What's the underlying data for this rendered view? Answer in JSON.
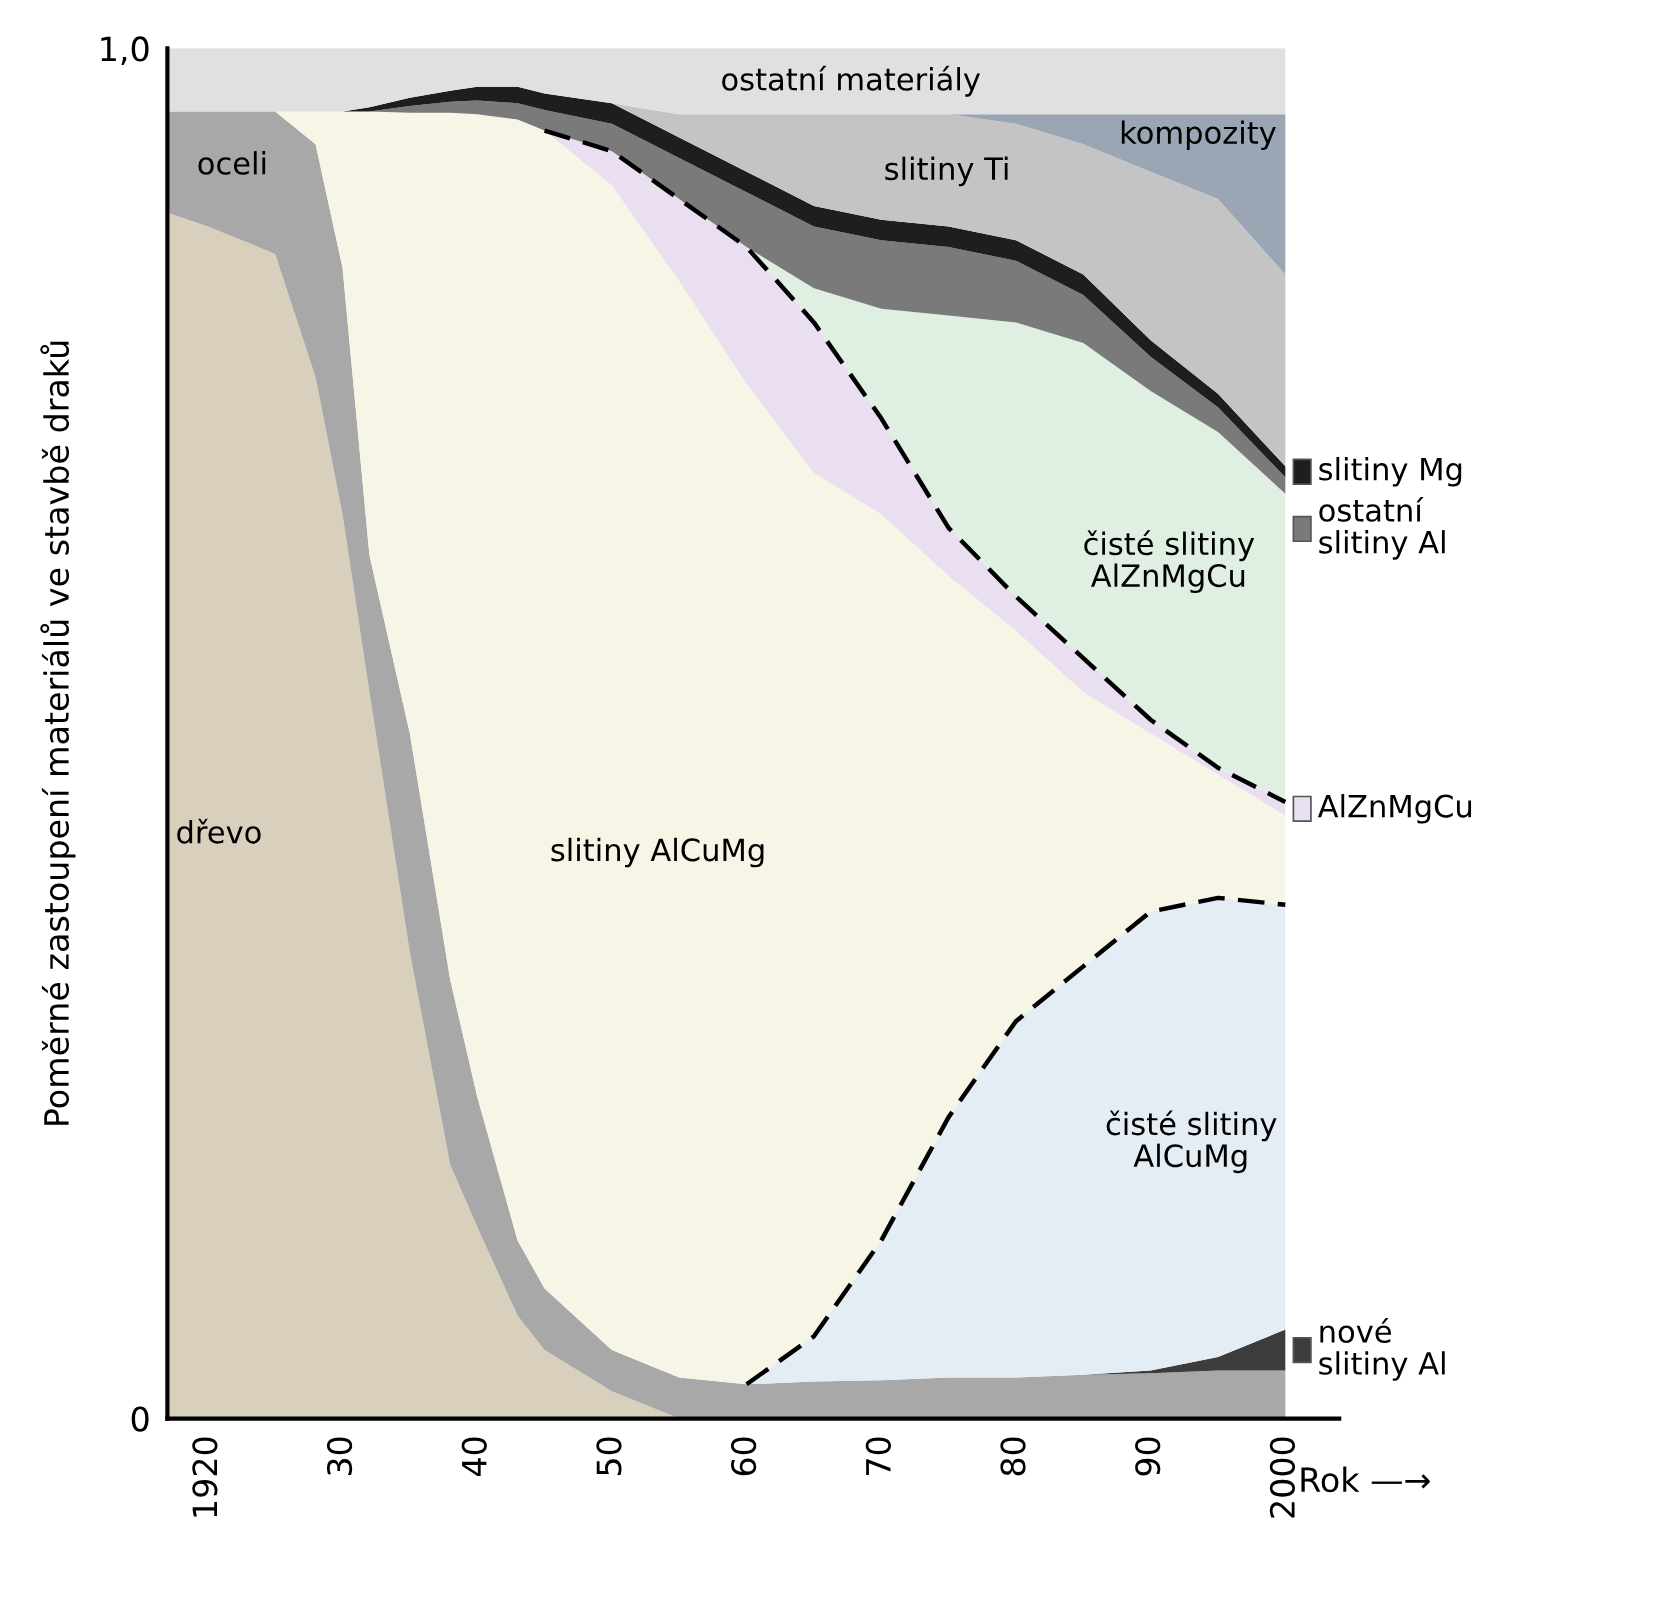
{
  "chart_data": {
    "type": "area",
    "stacked": true,
    "ylabel": "Poměrné zastoupení materiálů ve stavbě draků",
    "xlabel": "Rok —→",
    "x": [
      1917,
      1920,
      1925,
      1928,
      1930,
      1932,
      1935,
      1938,
      1940,
      1943,
      1945,
      1950,
      1955,
      1960,
      1965,
      1970,
      1975,
      1980,
      1985,
      1990,
      1995,
      2000
    ],
    "xlim": [
      1917,
      2004
    ],
    "xticks": [
      {
        "value": 1920,
        "label": "1920"
      },
      {
        "value": 1930,
        "label": "30"
      },
      {
        "value": 1940,
        "label": "40"
      },
      {
        "value": 1950,
        "label": "50"
      },
      {
        "value": 1960,
        "label": "60"
      },
      {
        "value": 1970,
        "label": "70"
      },
      {
        "value": 1980,
        "label": "80"
      },
      {
        "value": 1990,
        "label": "90"
      },
      {
        "value": 2000,
        "label": "2000"
      }
    ],
    "ylim": [
      0,
      1
    ],
    "yticks": [
      0,
      {
        "value": 1,
        "label": "1,0"
      }
    ],
    "series": [
      {
        "name": "dřevo",
        "color": "#d9cfbd",
        "values": [
          0.88,
          0.87,
          0.85,
          0.76,
          0.66,
          0.53,
          0.34,
          0.185,
          0.14,
          0.075,
          0.05,
          0.02,
          0,
          null,
          null,
          null,
          null,
          null,
          null,
          null,
          null,
          null
        ]
      },
      {
        "name": "oceli",
        "color": "#a8a8a8",
        "values": [
          0.074,
          0.084,
          0.104,
          0.17,
          0.18,
          0.1,
          0.16,
          0.135,
          0.095,
          0.055,
          0.045,
          0.03,
          0.03,
          0.025,
          0.027,
          0.028,
          0.03,
          0.03,
          0.032,
          0.033,
          0.035,
          0.035
        ]
      },
      {
        "name": "nové\nslitiny Al",
        "color": "#3c3c3c",
        "values": [
          null,
          null,
          null,
          null,
          null,
          null,
          null,
          null,
          null,
          null,
          null,
          null,
          null,
          null,
          null,
          null,
          null,
          null,
          0,
          0.002,
          0.01,
          0.03
        ]
      },
      {
        "name": "čisté slitiny\nAlCuMg",
        "color": "#e4ecf4",
        "line_style": "dashed",
        "values": [
          null,
          null,
          null,
          null,
          null,
          null,
          null,
          null,
          null,
          null,
          null,
          null,
          null,
          0,
          0.033,
          0.102,
          0.19,
          0.26,
          0.298,
          0.335,
          0.335,
          0.31
        ]
      },
      {
        "name": "slitiny AlCuMg",
        "color": "#f7f5e6",
        "values": [
          null,
          null,
          0,
          0.024,
          0.114,
          0.324,
          0.453,
          0.633,
          0.717,
          0.818,
          0.845,
          0.85,
          0.8,
          0.73,
          0.63,
          0.53,
          0.395,
          0.285,
          0.2,
          0.13,
          0.09,
          0.065
        ]
      },
      {
        "name": "AlZnMgCu",
        "color": "#e9dff0",
        "line_style": "dashed",
        "values": [
          null,
          null,
          null,
          null,
          null,
          null,
          null,
          null,
          null,
          null,
          0,
          0.025,
          0.06,
          0.1,
          0.11,
          0.07,
          0.035,
          0.025,
          0.025,
          0.01,
          0.005,
          0.01
        ]
      },
      {
        "name": "čisté slitiny\nAlZnMgCu",
        "color": "#dff0e2",
        "values": [
          null,
          null,
          null,
          null,
          null,
          null,
          null,
          null,
          null,
          null,
          null,
          null,
          null,
          0,
          0.025,
          0.08,
          0.155,
          0.2,
          0.23,
          0.24,
          0.245,
          0.225
        ]
      },
      {
        "name": "ostatní\nslitiny Al",
        "color": "#7a7a7a",
        "values": [
          null,
          null,
          null,
          null,
          null,
          0,
          0.005,
          0.008,
          0.01,
          0.012,
          0.015,
          0.02,
          0.03,
          0.04,
          0.045,
          0.05,
          0.05,
          0.045,
          0.035,
          0.025,
          0.018,
          0.012
        ]
      },
      {
        "name": "slitiny Mg",
        "color": "#1e1e1e",
        "values": [
          null,
          null,
          null,
          null,
          0,
          0.003,
          0.006,
          0.008,
          0.01,
          0.012,
          0.012,
          0.015,
          0.015,
          0.015,
          0.015,
          0.015,
          0.015,
          0.015,
          0.015,
          0.012,
          0.01,
          0.008
        ]
      },
      {
        "name": "slitiny Ti",
        "color": "#c4c4c4",
        "values": [
          null,
          null,
          null,
          null,
          null,
          null,
          null,
          null,
          null,
          null,
          null,
          0,
          0.017,
          0.042,
          0.067,
          0.077,
          0.082,
          0.085,
          0.095,
          0.123,
          0.142,
          0.14
        ]
      },
      {
        "name": "kompozity",
        "color": "#9aa6b4",
        "values": [
          null,
          null,
          null,
          null,
          null,
          null,
          null,
          null,
          null,
          null,
          null,
          null,
          null,
          null,
          null,
          null,
          0,
          0.007,
          0.022,
          0.042,
          0.062,
          0.117
        ]
      },
      {
        "name": "ostatní materiály",
        "color": "#e0e0e0",
        "values": [
          0.046,
          0.046,
          0.046,
          0.046,
          0.046,
          0.043,
          0.036,
          0.031,
          0.028,
          0.028,
          0.033,
          0.04,
          0.048,
          0.048,
          0.048,
          0.048,
          0.048,
          0.048,
          0.048,
          0.048,
          0.048,
          0.048
        ]
      }
    ],
    "legend": "right"
  }
}
